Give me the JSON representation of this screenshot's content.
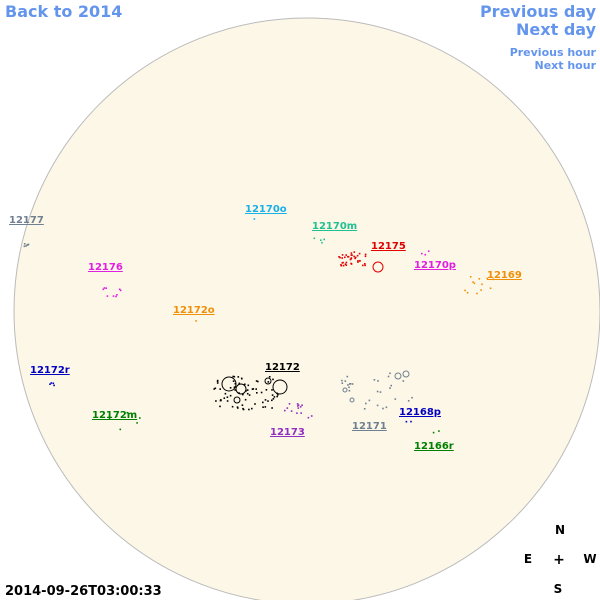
{
  "nav": {
    "back": "Back to 2014",
    "previous_day": "Previous day",
    "next_day": "Next day",
    "previous_hour": "Previous hour",
    "next_hour": "Next hour"
  },
  "timestamp": "2014-09-26T03:00:33",
  "compass": {
    "north": "N",
    "east": "E",
    "center": "+",
    "west": "W",
    "south": "S"
  },
  "regions": [
    {
      "label": "12177",
      "color": "#708090"
    },
    {
      "label": "12170o",
      "color": "#1ab0e8"
    },
    {
      "label": "12170m",
      "color": "#20c090"
    },
    {
      "label": "12175",
      "color": "#e00000"
    },
    {
      "label": "12176",
      "color": "#e020e0"
    },
    {
      "label": "12170p",
      "color": "#e020e0"
    },
    {
      "label": "12169",
      "color": "#f0900a"
    },
    {
      "label": "12172o",
      "color": "#f0900a"
    },
    {
      "label": "12172r",
      "color": "#0000c0"
    },
    {
      "label": "12172",
      "color": "#000000"
    },
    {
      "label": "12172m",
      "color": "#008000"
    },
    {
      "label": "12173",
      "color": "#9030c0"
    },
    {
      "label": "12171",
      "color": "#708090"
    },
    {
      "label": "12168p",
      "color": "#0000c0"
    },
    {
      "label": "12166r",
      "color": "#008000"
    }
  ]
}
